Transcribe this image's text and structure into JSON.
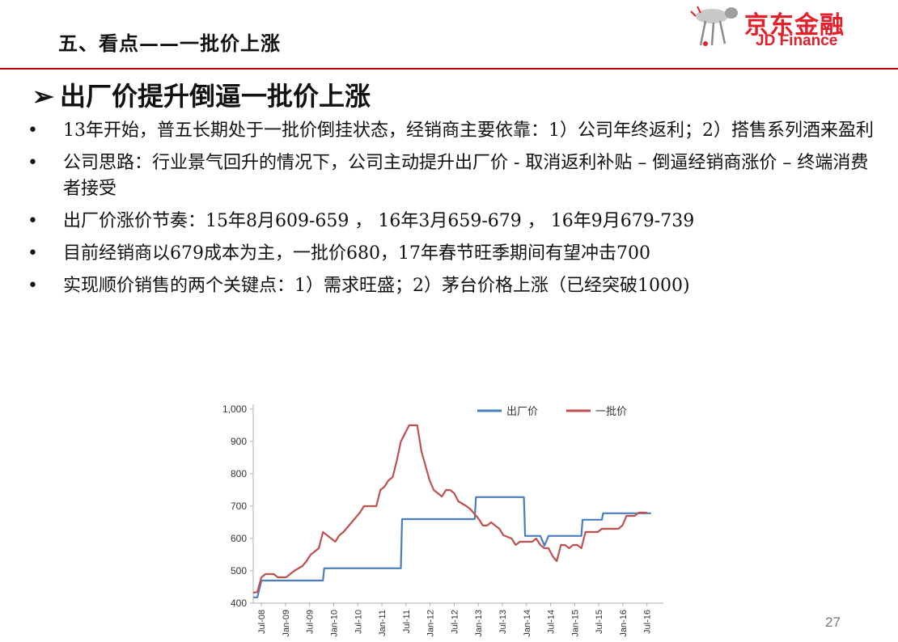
{
  "header": {
    "title": "五、看点——一批价上涨"
  },
  "logo": {
    "cn": "京东金融",
    "en": "JD Finance",
    "brand_color": "#e3202a"
  },
  "main": {
    "heading_marker": "➢",
    "heading": "出厂价提升倒逼一批价上涨",
    "bullet_marker": "•",
    "bullets": [
      "13年开始，普五长期处于一批价倒挂状态，经销商主要依靠：1）公司年终返利；2）搭售系列酒来盈利",
      "公司思路：行业景气回升的情况下，公司主动提升出厂价 - 取消返利补贴 – 倒逼经销商涨价 – 终端消费者接受",
      "出厂价涨价节奏：15年8月609-659 ， 16年3月659-679 ， 16年9月679-739",
      "目前经销商以679成本为主，一批价680，17年春节旺季期间有望冲击700",
      "实现顺价销售的两个关键点：1）需求旺盛；2）茅台价格上涨（已经突破1000)"
    ]
  },
  "page_number": "27",
  "chart_data": {
    "type": "line",
    "yticks": [
      "1,000",
      "900",
      "800",
      "700",
      "600",
      "500",
      "400"
    ],
    "ylim": [
      400,
      1000
    ],
    "x_tick_labels": [
      "Jul-08",
      "Jan-09",
      "Jul-09",
      "Jan-10",
      "Jul-10",
      "Jan-11",
      "Jul-11",
      "Jan-12",
      "Jul-12",
      "Jan-13",
      "Jul-13",
      "Jan-14",
      "Jul-14",
      "Jan-15",
      "Jul-15",
      "Jan-16",
      "Jul-16"
    ],
    "xlim": [
      0,
      100
    ],
    "legend_position": "top",
    "series": [
      {
        "name": "出厂价",
        "color": "#4a7ebb",
        "points": [
          [
            0,
            418
          ],
          [
            1,
            418
          ],
          [
            2,
            470
          ],
          [
            17,
            470
          ],
          [
            17.3,
            508
          ],
          [
            36,
            508
          ],
          [
            36.3,
            660
          ],
          [
            54,
            660
          ],
          [
            54.3,
            728
          ],
          [
            66,
            728
          ],
          [
            66.3,
            608
          ],
          [
            70,
            608
          ],
          [
            71,
            578
          ],
          [
            72,
            608
          ],
          [
            80,
            608
          ],
          [
            80.3,
            658
          ],
          [
            85,
            658
          ],
          [
            85.3,
            678
          ],
          [
            97,
            678
          ]
        ]
      },
      {
        "name": "一批价",
        "color": "#c0504d",
        "points": [
          [
            0,
            432
          ],
          [
            1,
            435
          ],
          [
            2,
            480
          ],
          [
            3,
            490
          ],
          [
            5,
            490
          ],
          [
            6,
            480
          ],
          [
            8,
            480
          ],
          [
            10,
            500
          ],
          [
            12,
            515
          ],
          [
            13,
            530
          ],
          [
            14,
            550
          ],
          [
            15,
            560
          ],
          [
            16,
            570
          ],
          [
            17,
            620
          ],
          [
            18,
            610
          ],
          [
            19,
            600
          ],
          [
            20,
            590
          ],
          [
            21,
            610
          ],
          [
            22,
            620
          ],
          [
            24,
            650
          ],
          [
            26,
            680
          ],
          [
            27,
            700
          ],
          [
            30,
            700
          ],
          [
            31,
            750
          ],
          [
            32,
            760
          ],
          [
            33,
            780
          ],
          [
            34,
            790
          ],
          [
            35,
            840
          ],
          [
            36,
            900
          ],
          [
            38,
            950
          ],
          [
            40,
            950
          ],
          [
            41,
            870
          ],
          [
            43,
            780
          ],
          [
            44,
            750
          ],
          [
            46,
            730
          ],
          [
            47,
            750
          ],
          [
            48,
            750
          ],
          [
            49,
            740
          ],
          [
            50,
            715
          ],
          [
            52,
            700
          ],
          [
            53,
            690
          ],
          [
            55,
            660
          ],
          [
            56,
            640
          ],
          [
            57,
            640
          ],
          [
            58,
            650
          ],
          [
            59,
            640
          ],
          [
            60,
            630
          ],
          [
            61,
            610
          ],
          [
            62,
            605
          ],
          [
            63,
            600
          ],
          [
            64,
            580
          ],
          [
            65,
            590
          ],
          [
            68,
            590
          ],
          [
            69,
            600
          ],
          [
            70,
            580
          ],
          [
            71,
            570
          ],
          [
            72,
            570
          ],
          [
            73,
            545
          ],
          [
            74,
            530
          ],
          [
            75,
            580
          ],
          [
            76,
            580
          ],
          [
            77,
            570
          ],
          [
            78,
            580
          ],
          [
            79,
            580
          ],
          [
            80,
            570
          ],
          [
            81,
            620
          ],
          [
            83,
            620
          ],
          [
            84,
            620
          ],
          [
            85,
            630
          ],
          [
            89,
            630
          ],
          [
            90,
            640
          ],
          [
            91,
            670
          ],
          [
            93,
            670
          ],
          [
            94,
            680
          ],
          [
            96,
            680
          ]
        ]
      }
    ]
  }
}
